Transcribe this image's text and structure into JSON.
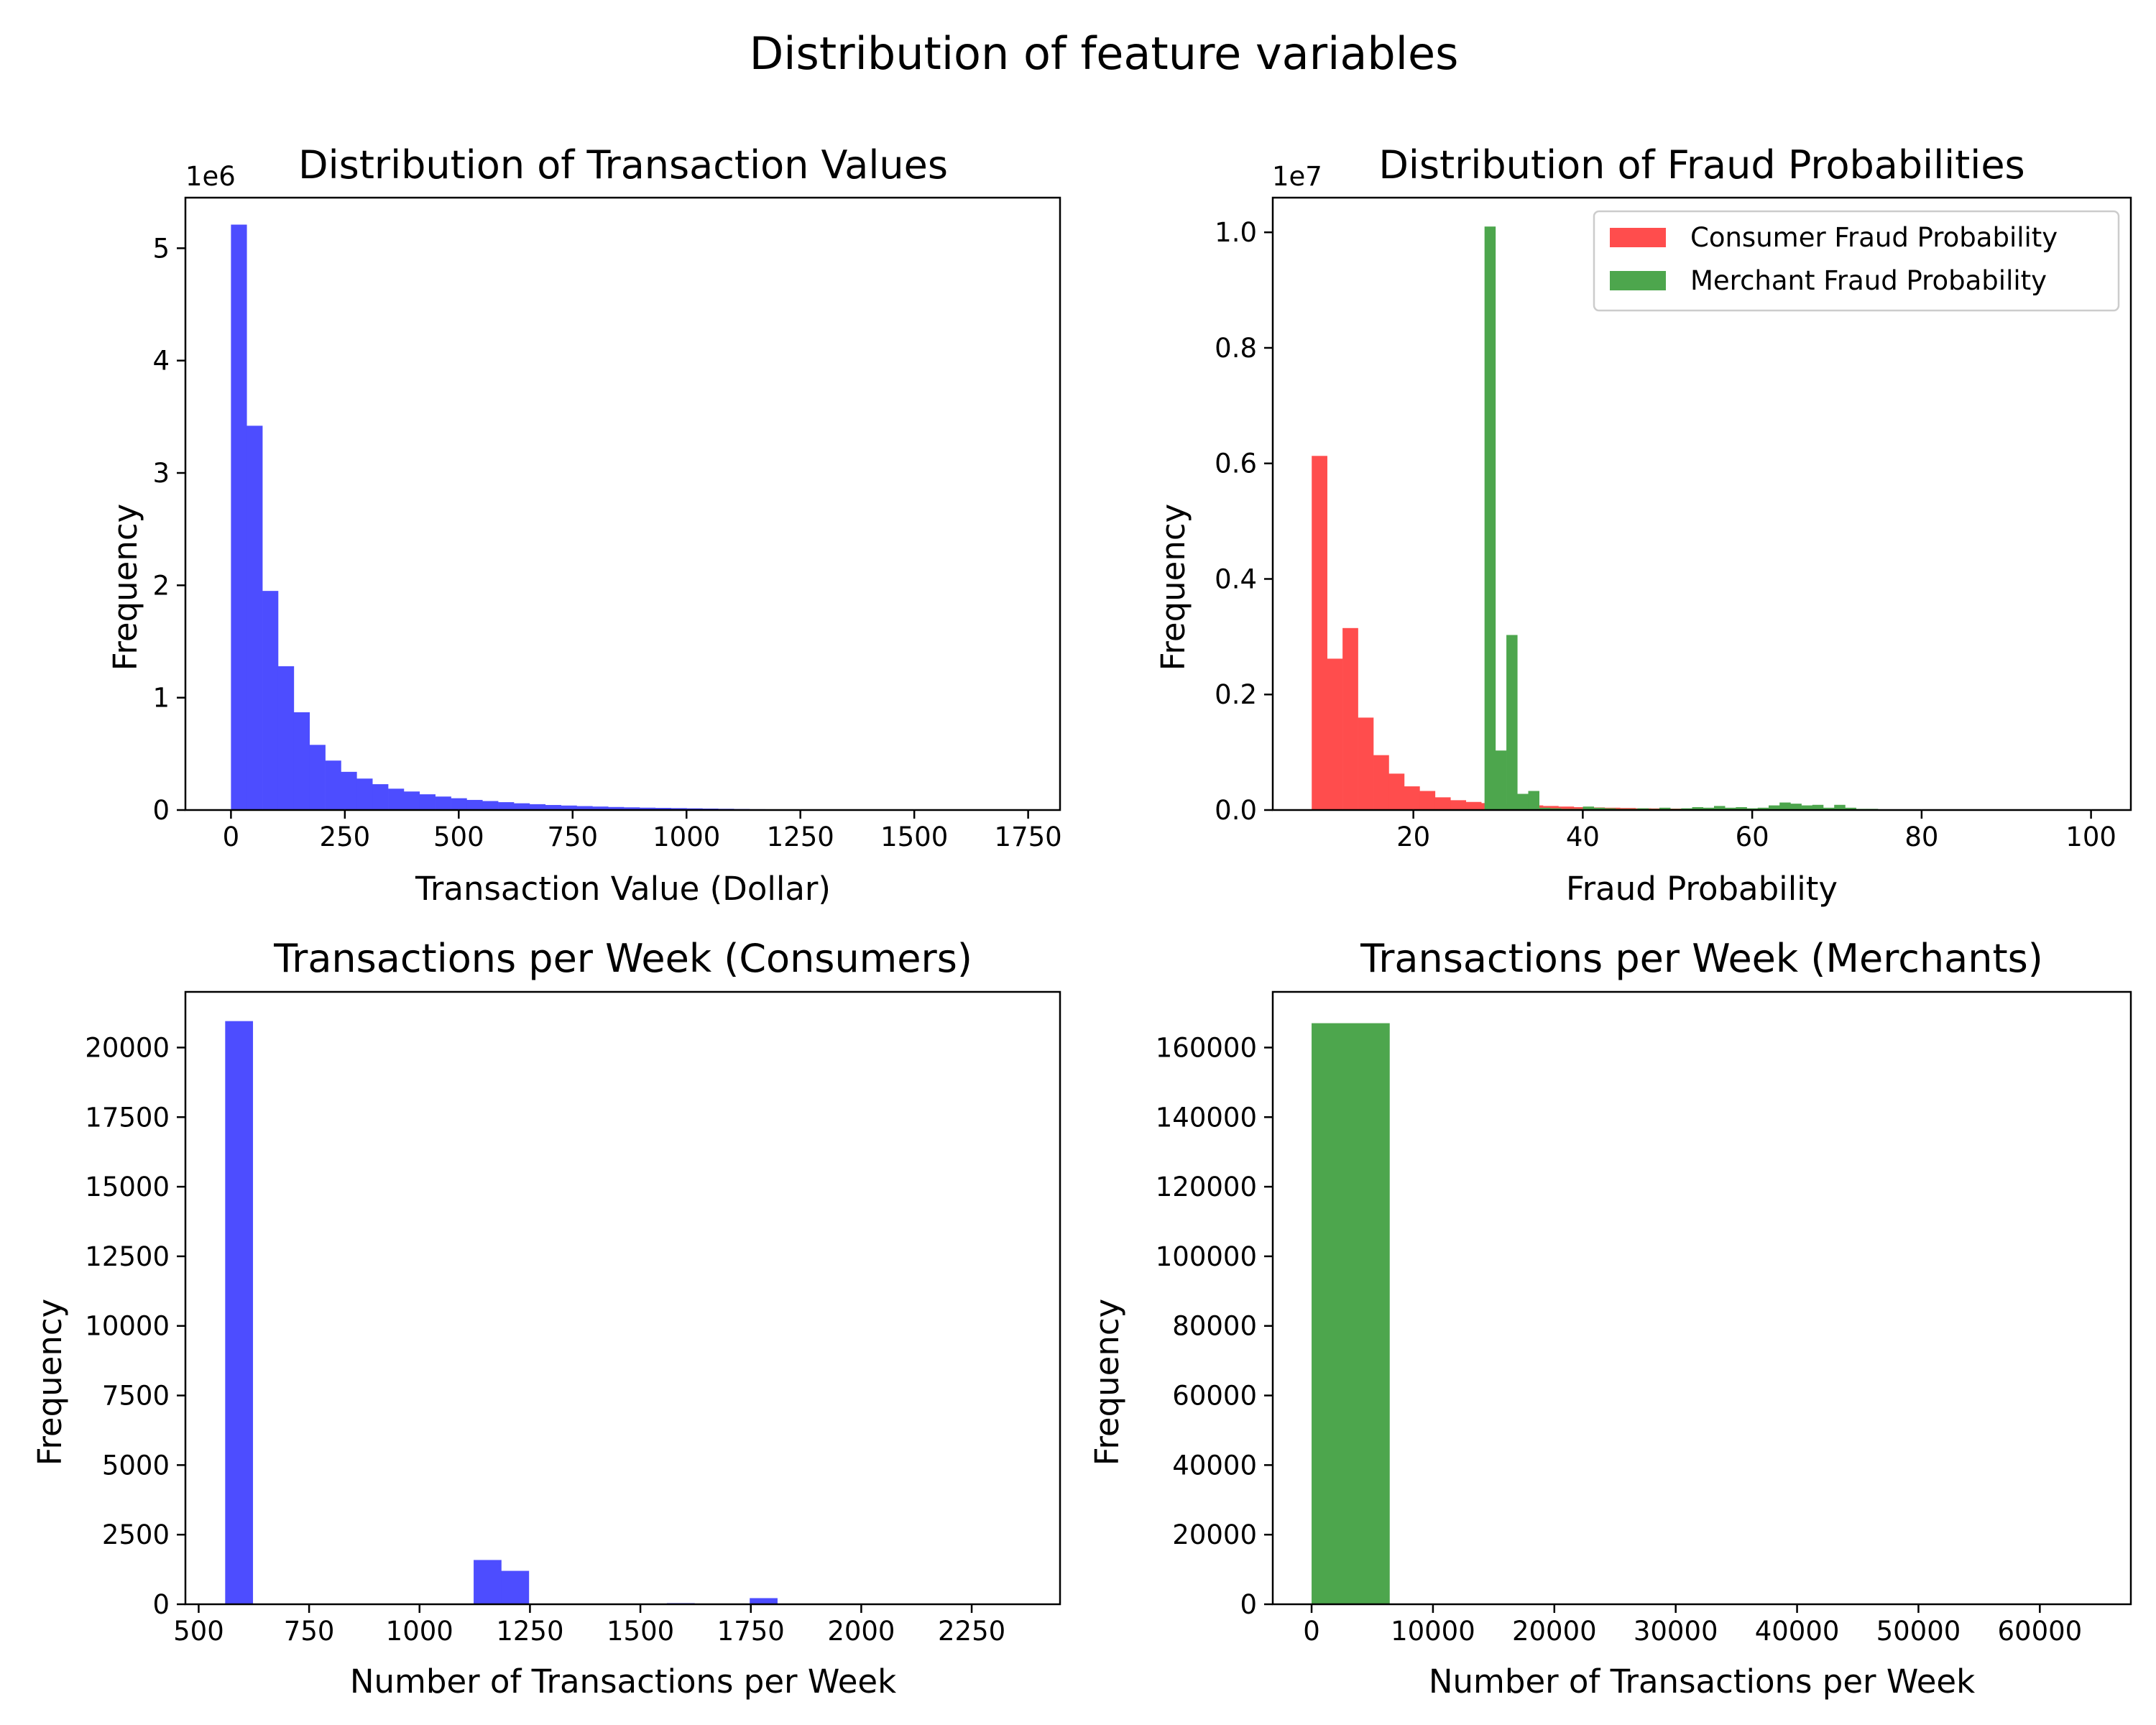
{
  "figure": {
    "suptitle": "Distribution of feature variables"
  },
  "chart_data": [
    {
      "type": "bar",
      "title": "Distribution of Transaction Values",
      "xlabel": "Transaction Value (Dollar)",
      "ylabel": "Frequency",
      "offset_text": "1e6",
      "scale": 1000000,
      "xlim": [
        -100,
        1820
      ],
      "ylim": [
        0,
        5.45
      ],
      "xticks": [
        0,
        250,
        500,
        750,
        1000,
        1250,
        1500,
        1750
      ],
      "yticks": [
        0,
        1,
        2,
        3,
        4,
        5
      ],
      "series": [
        {
          "color": "#4d4dff",
          "bin_start": 0,
          "bin_width": 34.5,
          "values": [
            5.21,
            3.42,
            1.95,
            1.28,
            0.87,
            0.58,
            0.44,
            0.34,
            0.28,
            0.23,
            0.19,
            0.165,
            0.14,
            0.12,
            0.105,
            0.09,
            0.08,
            0.07,
            0.06,
            0.052,
            0.045,
            0.04,
            0.035,
            0.031,
            0.027,
            0.024,
            0.021,
            0.019,
            0.017,
            0.015,
            0.013,
            0.011,
            0.009,
            0.007,
            0.005,
            0.004,
            0.003,
            0.002,
            0.002,
            0.0015,
            0.001,
            0.001,
            0.0008,
            0.0006,
            0.0005,
            0.0004,
            0.0003,
            0.0002,
            0.0002,
            0.0001
          ]
        }
      ]
    },
    {
      "type": "bar",
      "title": "Distribution of Fraud Probabilities",
      "xlabel": "Fraud Probability",
      "ylabel": "Frequency",
      "offset_text": "1e7",
      "scale": 10000000,
      "xlim": [
        3.4,
        104.7
      ],
      "ylim": [
        0,
        1.06
      ],
      "xticks": [
        20,
        40,
        60,
        80,
        100
      ],
      "yticks": [
        0,
        0.2,
        0.4,
        0.6,
        0.8,
        1
      ],
      "ytick_labels": [
        "0.0",
        "0.2",
        "0.4",
        "0.6",
        "0.8",
        "1.0"
      ],
      "legend": {
        "position": "top-right"
      },
      "series": [
        {
          "name": "Consumer Fraud Probability",
          "color": "#ff4d4d",
          "bin_start": 8.0,
          "bin_width": 1.82,
          "values": [
            0.613,
            0.262,
            0.315,
            0.16,
            0.095,
            0.063,
            0.041,
            0.033,
            0.022,
            0.017,
            0.014,
            0.012,
            0.01,
            0.009,
            0.008,
            0.007,
            0.006,
            0.005,
            0.0045,
            0.004,
            0.0035,
            0.003,
            0.0028,
            0.0025,
            0.0022,
            0.002,
            0.0018,
            0.0016,
            0.0014,
            0.0012,
            0.0011,
            0.001,
            0.0009,
            0.0008,
            0.0007,
            0.0006,
            0.0005,
            0.0004,
            0.0004,
            0.0003,
            0.0003,
            0.0002,
            0.0002,
            0.0002,
            0.0001,
            0.0001,
            0.0001,
            0.0001,
            0.0001,
            0.0001
          ]
        },
        {
          "name": "Merchant Fraud Probability",
          "color": "#4da64d",
          "bin_start": 28.4,
          "bin_width": 1.29,
          "values": [
            1.01,
            0.103,
            0.303,
            0.028,
            0.033,
            0.004,
            0.003,
            0.002,
            0.002,
            0.006,
            0.004,
            0.003,
            0.002,
            0.002,
            0.003,
            0.002,
            0.004,
            0.002,
            0.003,
            0.005,
            0.004,
            0.007,
            0.004,
            0.005,
            0.003,
            0.004,
            0.008,
            0.013,
            0.011,
            0.008,
            0.009,
            0.004,
            0.009,
            0.004,
            0.002,
            0.002,
            0.001,
            0.001,
            0.0005,
            0.0005,
            0.0003,
            0.0003,
            0.0002,
            0.0002,
            0.0001,
            0.0001,
            0.0001,
            0.0001,
            0.0001,
            0.0001
          ]
        }
      ]
    },
    {
      "type": "bar",
      "title": "Transactions per Week (Consumers)",
      "xlabel": "Number of Transactions per Week",
      "ylabel": "Frequency",
      "offset_text": "",
      "scale": 1,
      "xlim": [
        470,
        2450
      ],
      "ylim": [
        0,
        22000
      ],
      "xticks": [
        500,
        750,
        1000,
        1250,
        1500,
        1750,
        2000,
        2250
      ],
      "yticks": [
        0,
        2500,
        5000,
        7500,
        10000,
        12500,
        15000,
        17500,
        20000
      ],
      "series": [
        {
          "color": "#4d4dff",
          "bin_start": 560,
          "bin_width": 62.5,
          "values": [
            20950,
            0,
            0,
            0,
            0,
            0,
            0,
            0,
            0,
            1590,
            1200,
            0,
            0,
            0,
            0,
            0,
            40,
            0,
            0,
            220,
            20,
            0,
            0,
            0,
            0,
            0,
            0,
            0,
            0,
            0
          ]
        }
      ]
    },
    {
      "type": "bar",
      "title": "Transactions per Week (Merchants)",
      "xlabel": "Number of Transactions per Week",
      "ylabel": "Frequency",
      "offset_text": "",
      "scale": 1,
      "xlim": [
        -3200,
        67500
      ],
      "ylim": [
        0,
        176000
      ],
      "xticks": [
        0,
        10000,
        20000,
        30000,
        40000,
        50000,
        60000
      ],
      "yticks": [
        0,
        20000,
        40000,
        60000,
        80000,
        100000,
        120000,
        140000,
        160000
      ],
      "series": [
        {
          "color": "#4da64d",
          "bin_start": 0,
          "bin_width": 6420,
          "values": [
            167000,
            0,
            0,
            0,
            0,
            0,
            0,
            0,
            0,
            0
          ]
        }
      ]
    }
  ]
}
